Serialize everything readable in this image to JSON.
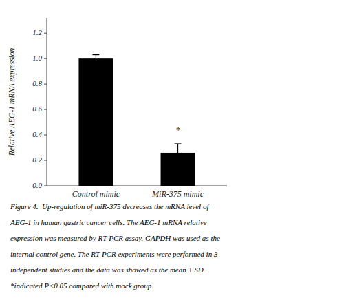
{
  "chart_data": {
    "type": "bar",
    "categories": [
      "Control mimic",
      "MiR-375 mimic"
    ],
    "values": [
      1.0,
      0.26
    ],
    "errors": [
      0.03,
      0.07
    ],
    "color": "#000000",
    "ylim": [
      0,
      1.32
    ],
    "yticks": [
      {
        "value": 0.0,
        "label": "0.0"
      },
      0.2,
      0.4,
      0.6,
      0.8,
      {
        "value": 1.0,
        "label": "1.0"
      },
      1.2
    ],
    "ylabel": "Relative AEG-1 mRNA expression",
    "annotations": [
      {
        "text": "*",
        "category": "MiR-375 mimic",
        "y": 0.415
      }
    ],
    "caption": [
      "Figure 4.  Up-regulation of miR-375 decreases the mRNA level of",
      "AEG-1 in human gastric cancer cells. The AEG-1 mRNA relative",
      "expression was measured by RT-PCR assay. GAPDH was used as the",
      "internal control gene. The RT-PCR experiments were performed in 3",
      "independent studies and the data was showed as the mean ± SD.",
      "*indicated P<0.05 compared with mock group."
    ],
    "grid": false
  }
}
